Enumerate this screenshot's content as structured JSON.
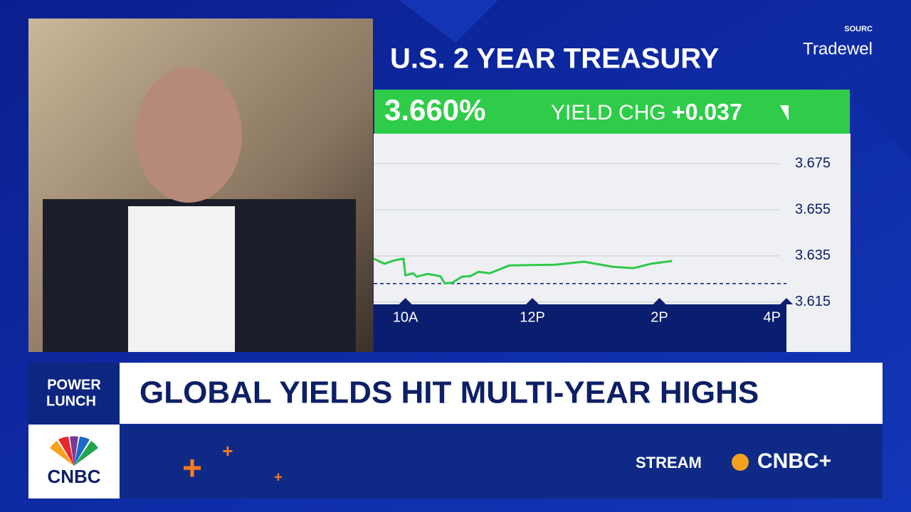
{
  "header": {
    "source": "SOURC",
    "provider": "Tradewel"
  },
  "chart_data": {
    "type": "line",
    "title": "U.S. 2 YEAR TREASURY",
    "yield": "3.660%",
    "change_label": "YIELD CHG",
    "change": "+0.037",
    "x": [
      9.5,
      9.67,
      9.83,
      9.97,
      10.0,
      10.12,
      10.18,
      10.35,
      10.55,
      10.62,
      10.74,
      10.89,
      11.02,
      11.15,
      11.33,
      11.64,
      12.36,
      12.81,
      13.26,
      13.59,
      13.87,
      14.2
    ],
    "series": [
      {
        "color": "#2fc94a",
        "values": [
          3.6338,
          3.6316,
          3.6331,
          3.6338,
          3.6266,
          3.6275,
          3.626,
          3.6272,
          3.6262,
          3.6231,
          3.6234,
          3.626,
          3.6262,
          3.6281,
          3.6275,
          3.6309,
          3.6312,
          3.6325,
          3.6303,
          3.6297,
          3.6316,
          3.6328
        ]
      }
    ],
    "reference_line": 3.623,
    "xlim": [
      9.5,
      16
    ],
    "xticks": [
      {
        "value": 10,
        "label": "10A"
      },
      {
        "value": 12,
        "label": "12P"
      },
      {
        "value": 14,
        "label": "2P"
      },
      {
        "value": 16,
        "label": "4P"
      }
    ],
    "ylim": [
      3.614,
      3.688
    ],
    "yticks": [
      3.615,
      3.635,
      3.655,
      3.675
    ],
    "grid": true
  },
  "lower_third": {
    "show": [
      "POWER",
      "LUNCH"
    ],
    "headline": "GLOBAL YIELDS HIT MULTI-YEAR HIGHS"
  },
  "footer": {
    "network": "CNBC",
    "stream": "STREAM",
    "service": "CNBC+"
  }
}
